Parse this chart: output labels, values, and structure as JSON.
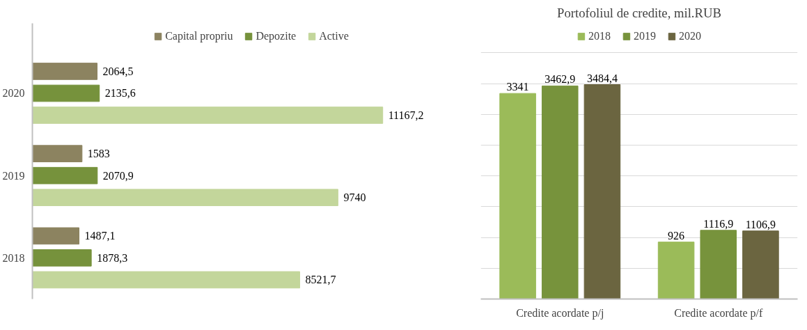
{
  "chart_data": [
    {
      "type": "bar",
      "orientation": "horizontal",
      "categories": [
        "2020",
        "2019",
        "2018"
      ],
      "legend": "top",
      "tick_labels": "y",
      "grid": false,
      "series": [
        {
          "name": "Capital propriu",
          "color": "#8c8360",
          "values": [
            2064.5,
            1583,
            1487.1
          ],
          "value_labels": [
            "2064,5",
            "1583",
            "1487,1"
          ]
        },
        {
          "name": "Depozite",
          "color": "#76923c",
          "values": [
            2135.6,
            2070.9,
            1878.3
          ],
          "value_labels": [
            "2135,6",
            "2070,9",
            "1878,3"
          ]
        },
        {
          "name": "Active",
          "color": "#c3d69b",
          "values": [
            11167.2,
            9740,
            8521.7
          ],
          "value_labels": [
            "11167,2",
            "9740",
            "8521,7"
          ]
        }
      ]
    },
    {
      "type": "bar",
      "title": "Portofoliul de credite, mil.RUB",
      "categories": [
        "Credite acordate p/j",
        "Credite acordate p/f"
      ],
      "legend": "top",
      "tick_labels": "x",
      "grid": "y",
      "ylim": [
        0,
        4000
      ],
      "yticks": [
        {
          "value": 0,
          "label": null
        },
        {
          "value": 500,
          "label": null
        },
        {
          "value": 1000,
          "label": null
        },
        {
          "value": 1500,
          "label": null
        },
        {
          "value": 2000,
          "label": null
        },
        {
          "value": 2500,
          "label": null
        },
        {
          "value": 3000,
          "label": null
        },
        {
          "value": 3500,
          "label": null
        },
        {
          "value": 4000,
          "label": null
        }
      ],
      "series": [
        {
          "name": "2018",
          "color": "#9bbb59",
          "values": [
            3341,
            926
          ],
          "value_labels": [
            "3341",
            "926"
          ]
        },
        {
          "name": "2019",
          "color": "#77933c",
          "values": [
            3462.9,
            1116.9
          ],
          "value_labels": [
            "3462,9",
            "1116,9"
          ]
        },
        {
          "name": "2020",
          "color": "#6b6540",
          "values": [
            3484.4,
            1106.9
          ],
          "value_labels": [
            "3484,4",
            "1106,9"
          ]
        }
      ]
    }
  ]
}
